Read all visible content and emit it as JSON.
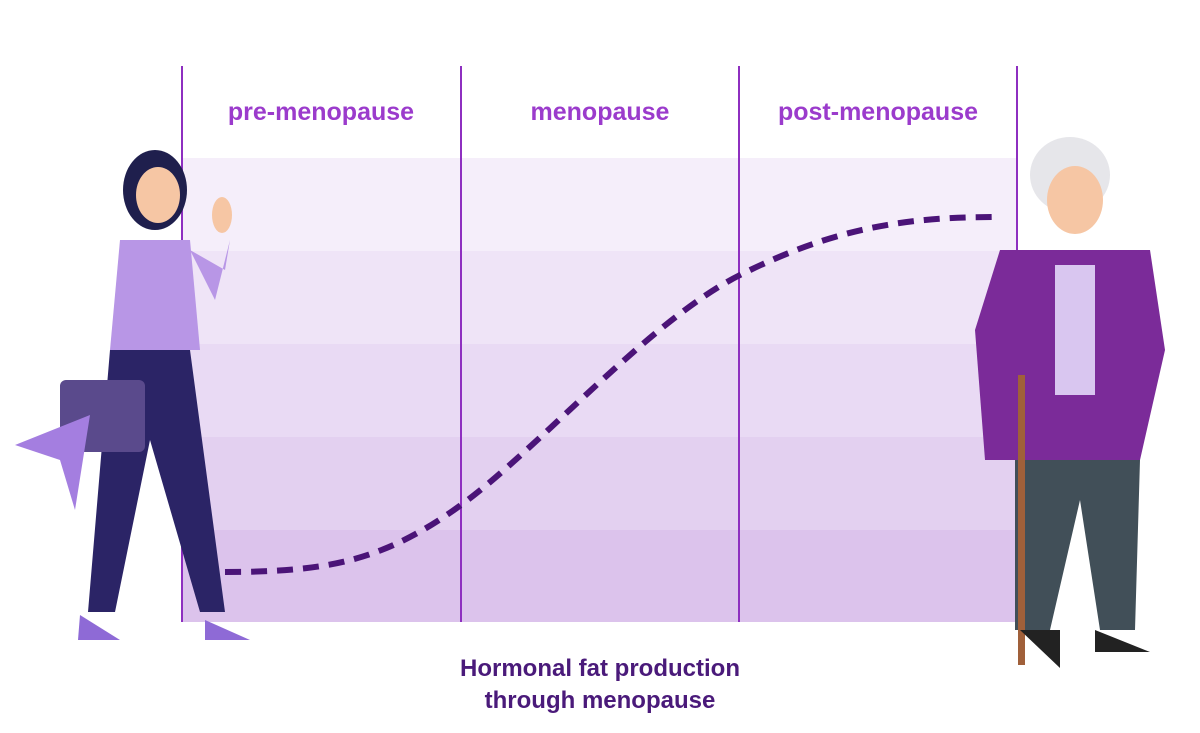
{
  "phases": [
    "pre-menopause",
    "menopause",
    "post-menopause"
  ],
  "caption": {
    "line1": "Hormonal fat production",
    "line2": "through menopause"
  },
  "colors": {
    "phase_label": "#9b3bcc",
    "divider": "#8e2fc0",
    "curve": "#4b1478",
    "caption": "#4a1a7a",
    "band_light": "#f5eefa",
    "band_dark": "#dcc3ec"
  },
  "curve_trend": "low in pre-menopause, rising through menopause, high and flat in post-menopause",
  "figures": [
    "young-woman-waving",
    "elderly-woman-with-cane"
  ]
}
